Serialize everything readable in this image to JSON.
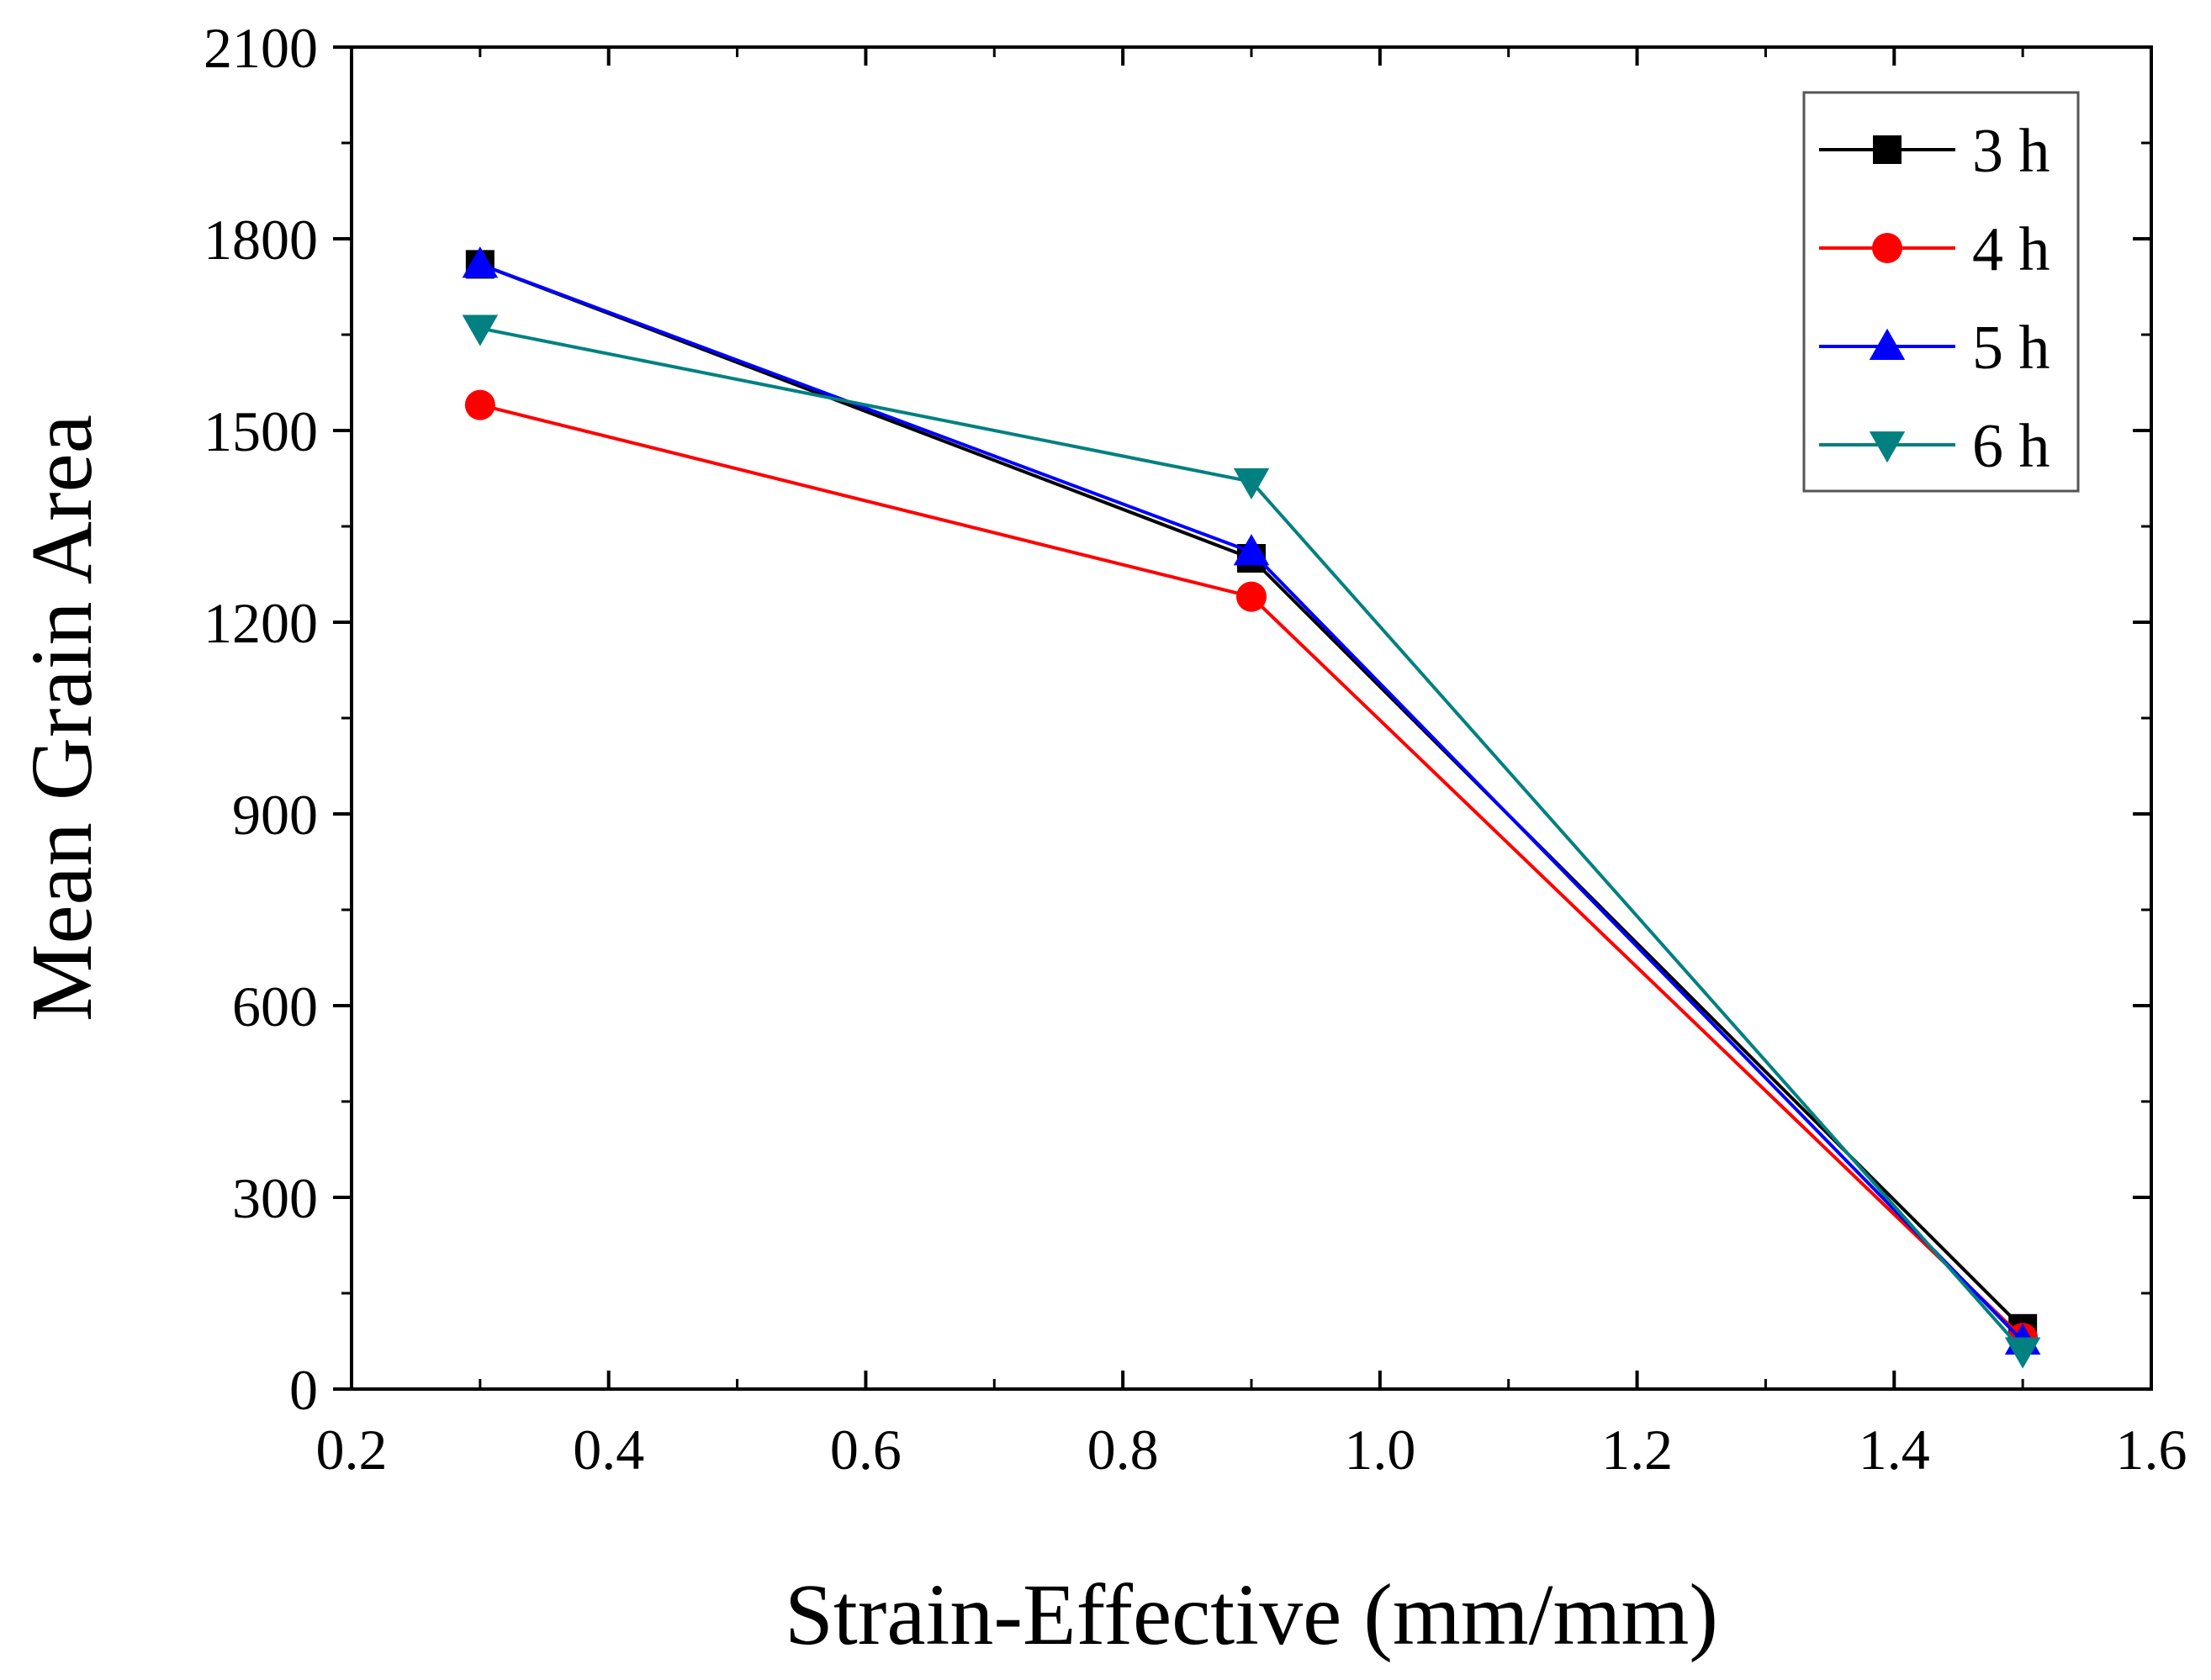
{
  "chart_data": {
    "type": "line",
    "title": "",
    "xlabel": "Strain-Effective (mm/mm)",
    "ylabel": "Mean Grain Area",
    "xlim": [
      0.2,
      1.6
    ],
    "ylim": [
      0,
      2100
    ],
    "xticks": [
      0.2,
      0.4,
      0.6,
      0.8,
      1.0,
      1.2,
      1.4,
      1.6
    ],
    "xtick_labels": [
      "0.2",
      "0.4",
      "0.6",
      "0.8",
      "1.0",
      "1.2",
      "1.4",
      "1.6"
    ],
    "yticks": [
      0,
      300,
      600,
      900,
      1200,
      1500,
      1800,
      2100
    ],
    "ytick_labels": [
      "0",
      "300",
      "600",
      "900",
      "1200",
      "1500",
      "1800",
      "2100"
    ],
    "x": [
      0.3,
      0.9,
      1.5
    ],
    "grid": false,
    "legend_position": "top-right",
    "series": [
      {
        "name": "3 h",
        "values": [
          1760,
          1300,
          95
        ],
        "color": "#000000",
        "marker": "square"
      },
      {
        "name": "4 h",
        "values": [
          1540,
          1240,
          80
        ],
        "color": "#ff0000",
        "marker": "circle"
      },
      {
        "name": "5 h",
        "values": [
          1760,
          1310,
          75
        ],
        "color": "#0000ff",
        "marker": "triangle-up"
      },
      {
        "name": "6 h",
        "values": [
          1660,
          1420,
          60
        ],
        "color": "#008080",
        "marker": "triangle-down"
      }
    ]
  }
}
